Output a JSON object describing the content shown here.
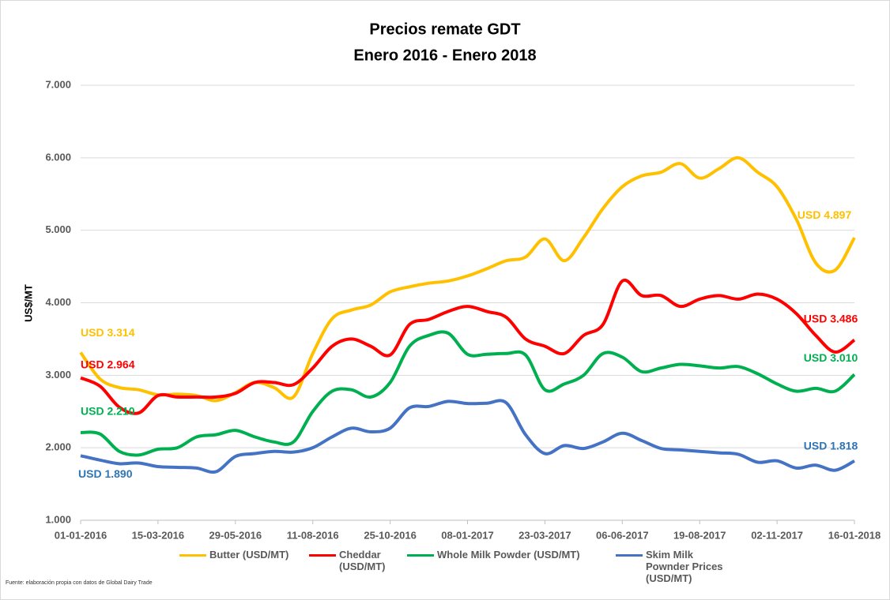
{
  "chart_data": {
    "type": "line",
    "title": "Precios remate GDT",
    "subtitle": "Enero 2016 - Enero 2018",
    "y_label": "US$/MT",
    "source": "Fuente: elaboración propia con datos de Global Dairy Trade",
    "categories": [
      "01-01-2016",
      null,
      null,
      null,
      "15-03-2016",
      null,
      null,
      null,
      "29-05-2016",
      null,
      null,
      null,
      "11-08-2016",
      null,
      null,
      null,
      "25-10-2016",
      null,
      null,
      null,
      "08-01-2017",
      null,
      null,
      null,
      "23-03-2017",
      null,
      null,
      null,
      "06-06-2017",
      null,
      null,
      null,
      "19-08-2017",
      null,
      null,
      null,
      "02-11-2017",
      null,
      null,
      null,
      "16-01-2018"
    ],
    "ylim": [
      1000,
      7000
    ],
    "yticks": [
      {
        "value": 1000,
        "label": "1.000"
      },
      {
        "value": 2000,
        "label": "2.000"
      },
      {
        "value": 3000,
        "label": "3.000"
      },
      {
        "value": 4000,
        "label": "4.000"
      },
      {
        "value": 5000,
        "label": "5.000"
      },
      {
        "value": 6000,
        "label": "6.000"
      },
      {
        "value": 7000,
        "label": "7.000"
      }
    ],
    "grid": true,
    "legend": "bottom",
    "series": [
      {
        "name": "Butter (USD/MT)",
        "color": "#FFC000",
        "values": [
          3314,
          2950,
          2830,
          2800,
          2730,
          2740,
          2720,
          2650,
          2760,
          2900,
          2830,
          2700,
          3300,
          3780,
          3900,
          3970,
          4150,
          4220,
          4270,
          4300,
          4370,
          4470,
          4580,
          4630,
          4880,
          4580,
          4900,
          5300,
          5600,
          5750,
          5800,
          5920,
          5720,
          5850,
          6000,
          5800,
          5600,
          5150,
          4550,
          4450,
          4897
        ],
        "value_labels": [
          "USD 3.314",
          null,
          null,
          null,
          null,
          null,
          null,
          null,
          null,
          null,
          null,
          null,
          null,
          null,
          null,
          null,
          null,
          null,
          null,
          null,
          null,
          null,
          null,
          null,
          null,
          null,
          null,
          null,
          null,
          null,
          null,
          null,
          null,
          null,
          null,
          null,
          null,
          null,
          null,
          null,
          "USD 4.897"
        ]
      },
      {
        "name": "Cheddar (USD/MT)",
        "color": "#FF0000",
        "values": [
          2964,
          2850,
          2560,
          2480,
          2720,
          2700,
          2700,
          2700,
          2750,
          2900,
          2900,
          2870,
          3100,
          3400,
          3500,
          3400,
          3280,
          3700,
          3770,
          3880,
          3950,
          3880,
          3800,
          3500,
          3400,
          3300,
          3550,
          3700,
          4300,
          4100,
          4100,
          3950,
          4050,
          4100,
          4050,
          4120,
          4050,
          3850,
          3550,
          3320,
          3486
        ],
        "value_labels": [
          "USD 2.964",
          null,
          null,
          null,
          null,
          null,
          null,
          null,
          null,
          null,
          null,
          null,
          null,
          null,
          null,
          null,
          null,
          null,
          null,
          null,
          null,
          null,
          null,
          null,
          null,
          null,
          null,
          null,
          null,
          null,
          null,
          null,
          null,
          null,
          null,
          null,
          null,
          null,
          null,
          null,
          "USD 3.486"
        ]
      },
      {
        "name": "Whole Milk Powder (USD/MT)",
        "color": "#00B050",
        "values": [
          2210,
          2190,
          1950,
          1900,
          1980,
          2000,
          2150,
          2180,
          2240,
          2150,
          2080,
          2080,
          2500,
          2780,
          2800,
          2700,
          2900,
          3400,
          3550,
          3580,
          3290,
          3290,
          3300,
          3280,
          2800,
          2880,
          3000,
          3300,
          3250,
          3050,
          3100,
          3150,
          3130,
          3100,
          3120,
          3020,
          2880,
          2780,
          2820,
          2780,
          3010
        ],
        "value_labels": [
          "USD 2.210",
          null,
          null,
          null,
          null,
          null,
          null,
          null,
          null,
          null,
          null,
          null,
          null,
          null,
          null,
          null,
          null,
          null,
          null,
          null,
          null,
          null,
          null,
          null,
          null,
          null,
          null,
          null,
          null,
          null,
          null,
          null,
          null,
          null,
          null,
          null,
          null,
          null,
          null,
          null,
          "USD 3.010"
        ]
      },
      {
        "name": "Skim Milk Pownder Prices (USD/MT)",
        "color": "#4472C4",
        "values": [
          1890,
          1830,
          1780,
          1790,
          1740,
          1730,
          1720,
          1670,
          1880,
          1920,
          1950,
          1940,
          2000,
          2150,
          2270,
          2220,
          2270,
          2550,
          2570,
          2640,
          2610,
          2615,
          2620,
          2180,
          1920,
          2030,
          1990,
          2080,
          2200,
          2100,
          1990,
          1970,
          1950,
          1930,
          1910,
          1800,
          1820,
          1720,
          1760,
          1690,
          1818
        ],
        "value_labels": [
          "USD 1.890",
          null,
          null,
          null,
          null,
          null,
          null,
          null,
          null,
          null,
          null,
          null,
          null,
          null,
          null,
          null,
          null,
          null,
          null,
          null,
          null,
          null,
          null,
          null,
          null,
          null,
          null,
          null,
          null,
          null,
          null,
          null,
          null,
          null,
          null,
          null,
          null,
          null,
          null,
          null,
          "USD 1.818"
        ]
      }
    ]
  }
}
